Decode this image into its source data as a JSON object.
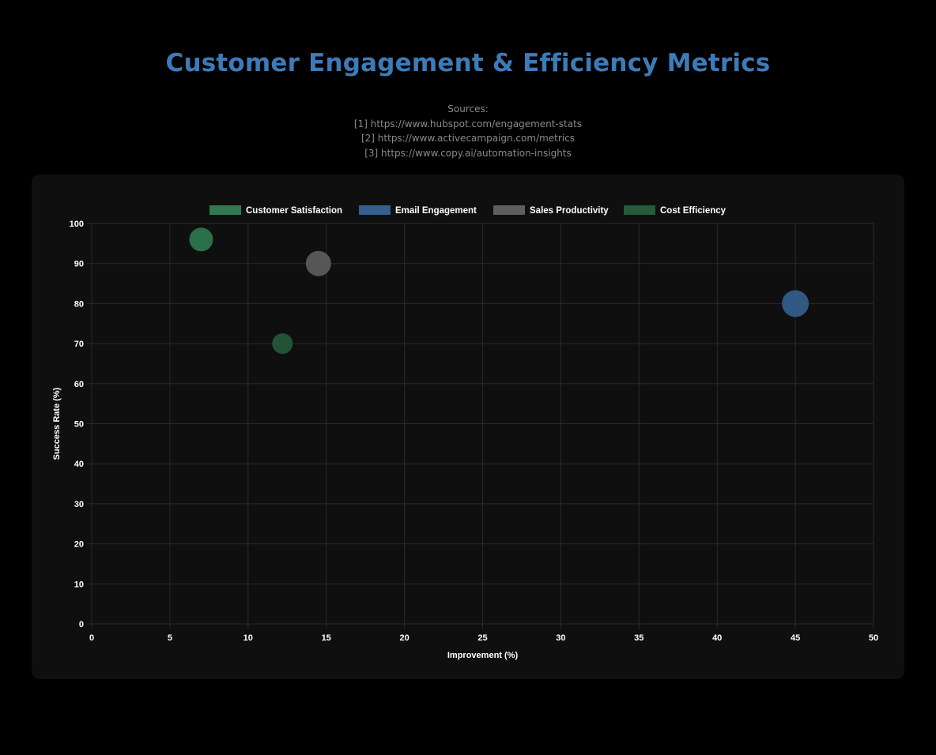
{
  "title": "Customer Engagement & Efficiency Metrics",
  "sources": {
    "heading": "Sources:",
    "items": [
      "[1] https://www.hubspot.com/engagement-stats",
      "[2] https://www.activecampaign.com/metrics",
      "[3] https://www.copy.ai/automation-insights"
    ]
  },
  "chart_data": {
    "type": "bubble",
    "xlabel": "Improvement (%)",
    "ylabel": "Success Rate (%)",
    "xlim": [
      0,
      50
    ],
    "ylim": [
      0,
      100
    ],
    "xticks": [
      0,
      5,
      10,
      15,
      20,
      25,
      30,
      35,
      40,
      45,
      50
    ],
    "yticks": [
      0,
      10,
      20,
      30,
      40,
      50,
      60,
      70,
      80,
      90,
      100
    ],
    "grid": true,
    "legend_position": "top",
    "series": [
      {
        "name": "Customer Satisfaction",
        "color": "#2f7a52",
        "points": [
          {
            "x": 7,
            "y": 96,
            "r": 15
          }
        ]
      },
      {
        "name": "Email Engagement",
        "color": "#33608f",
        "points": [
          {
            "x": 45,
            "y": 80,
            "r": 17
          }
        ]
      },
      {
        "name": "Sales Productivity",
        "color": "#5e5e5e",
        "points": [
          {
            "x": 14.5,
            "y": 90,
            "r": 16
          }
        ]
      },
      {
        "name": "Cost Efficiency",
        "color": "#265a3c",
        "points": [
          {
            "x": 12.2,
            "y": 70,
            "r": 13
          }
        ]
      }
    ]
  }
}
